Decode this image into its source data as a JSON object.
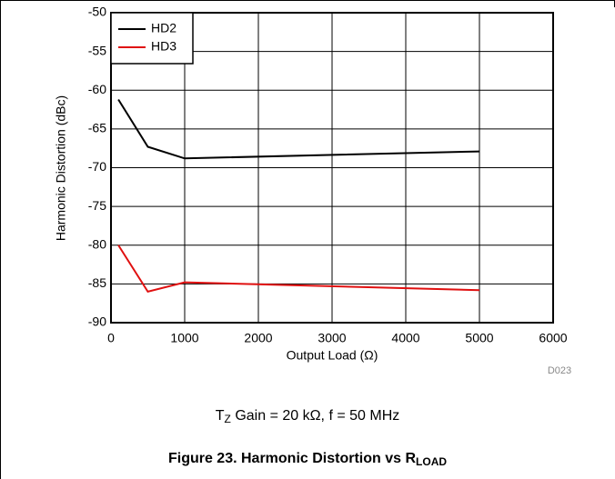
{
  "chart_data": {
    "type": "line",
    "x_label": "Output Load (Ω)",
    "y_label": "Harmonic Distortion (dBc)",
    "figure_id": "D023",
    "caption": {
      "t": "T",
      "sub": "Z",
      "rest": " Gain = 20 kΩ, f = 50 MHz"
    },
    "figure_title": {
      "main": "Figure 23. Harmonic Distortion vs R",
      "sub": "LOAD"
    },
    "x": [
      100,
      500,
      1000,
      5000
    ],
    "series": [
      {
        "name": "HD2",
        "color": "#000000",
        "values": [
          -61.2,
          -67.3,
          -68.8,
          -67.9
        ]
      },
      {
        "name": "HD3",
        "color": "#e01010",
        "values": [
          -80,
          -86,
          -84.8,
          -85.8
        ]
      }
    ],
    "xlim": [
      0,
      6000
    ],
    "xticks": [
      0,
      1000,
      2000,
      3000,
      4000,
      5000,
      6000
    ],
    "ylim": [
      -90,
      -50
    ],
    "yticks": [
      -90,
      -85,
      -80,
      -75,
      -70,
      -65,
      -60,
      -55,
      -50
    ],
    "grid": true,
    "legend": "upper-left"
  }
}
